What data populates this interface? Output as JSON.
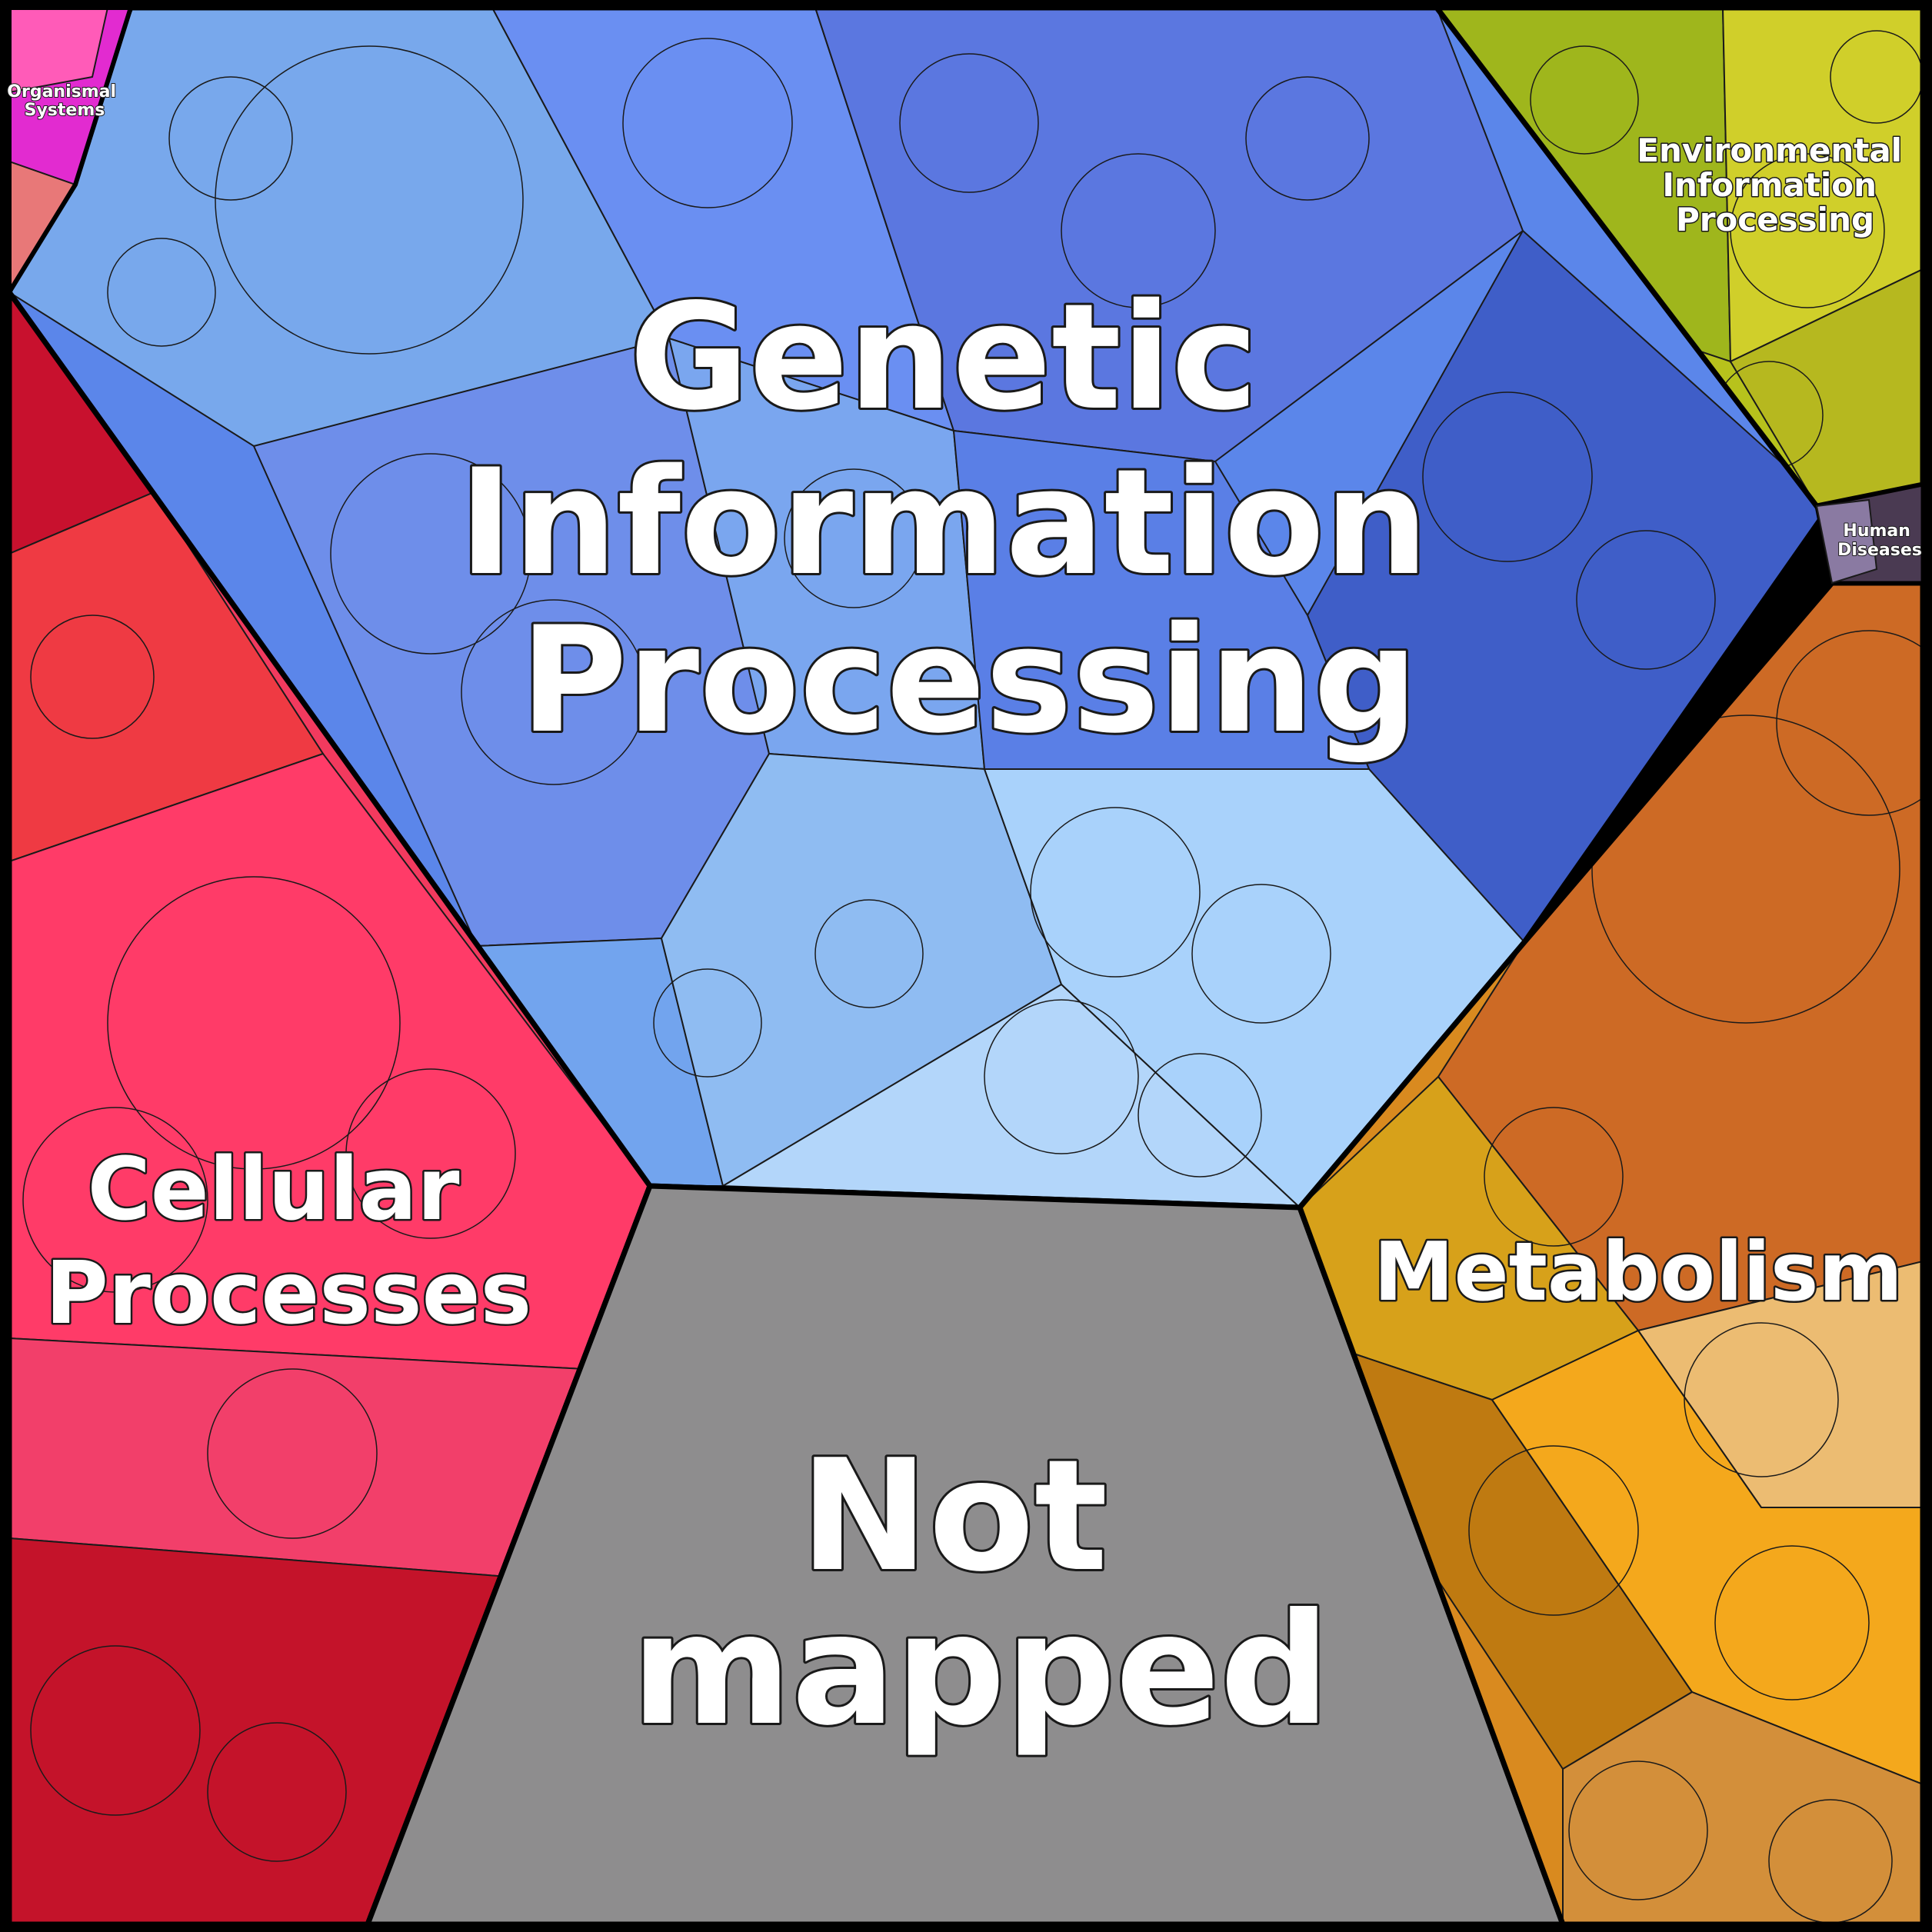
{
  "chart_data": {
    "type": "voronoi-treemap",
    "title": "",
    "categories": [
      {
        "name": "Genetic Information Processing",
        "label_lines": [
          "Genetic",
          "Information",
          "Processing"
        ],
        "color": "#5b86ea"
      },
      {
        "name": "Cellular Processes",
        "label_lines": [
          "Cellular",
          "Processes"
        ],
        "color": "#f23a5e"
      },
      {
        "name": "Not mapped",
        "label_lines": [
          "Not",
          "mapped"
        ],
        "color": "#8e8d8e"
      },
      {
        "name": "Metabolism",
        "label_lines": [
          "Metabolism"
        ],
        "color": "#d98a1f"
      },
      {
        "name": "Environmental Information Processing",
        "label_lines": [
          "Environmental",
          "Information",
          "Processing"
        ],
        "color": "#b7c21c"
      },
      {
        "name": "Human Diseases",
        "label_lines": [
          "Human",
          "Diseases"
        ],
        "color": "#4a3a52"
      },
      {
        "name": "Organismal Systems",
        "label_lines": [
          "Organismal",
          "Systems"
        ],
        "color": "#e22bd0"
      }
    ],
    "relative_area": {
      "Genetic Information Processing": 0.37,
      "Cellular Processes": 0.2,
      "Not mapped": 0.16,
      "Metabolism": 0.16,
      "Environmental Information Processing": 0.07,
      "Human Diseases": 0.005,
      "Organismal Systems": 0.02
    }
  }
}
